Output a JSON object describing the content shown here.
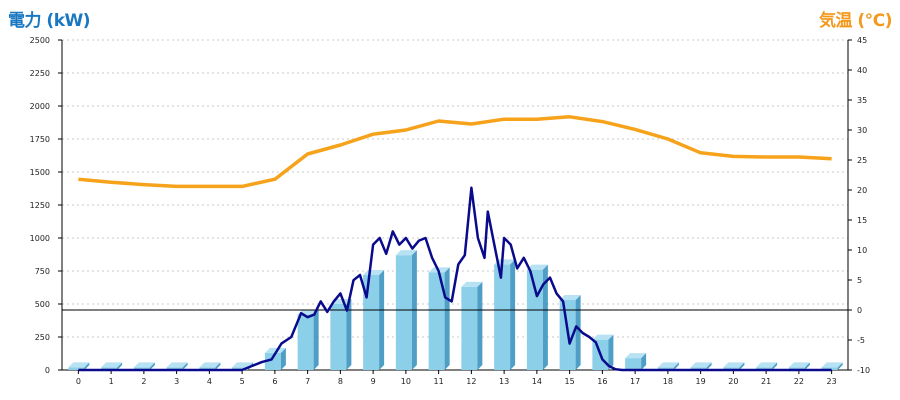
{
  "colors": {
    "power_line": "#0a0a8c",
    "temperature_line": "#f7a21b",
    "bar_front": "#8ccfe9",
    "bar_side": "#4f9ec5",
    "bar_top": "#b7e2f3",
    "grid": "#c9c9c9",
    "left_title": "#1a78c2",
    "right_title": "#f39a1e"
  },
  "chart_data": {
    "type": "bar+line",
    "left_axis_title": "電力 (kW)",
    "right_axis_title": "気温 (℃)",
    "left_ylim": [
      0,
      2500
    ],
    "left_yticks": [
      0,
      250,
      500,
      750,
      1000,
      1250,
      1500,
      1750,
      2000,
      2250,
      2500
    ],
    "right_ylim": [
      -10,
      45
    ],
    "right_yticks": [
      -10,
      -5,
      0,
      5,
      10,
      15,
      20,
      25,
      30,
      35,
      40,
      45
    ],
    "x_categories": [
      "0",
      "1",
      "2",
      "3",
      "4",
      "5",
      "6",
      "7",
      "8",
      "9",
      "10",
      "11",
      "12",
      "13",
      "14",
      "15",
      "16",
      "17",
      "18",
      "19",
      "20",
      "21",
      "22",
      "23"
    ],
    "grid": "horizontal dashed",
    "zero_reference_line_right_axis": 0,
    "series": [
      {
        "chart": "bar",
        "axis": "left",
        "values": [
          20,
          20,
          20,
          20,
          20,
          20,
          130,
          420,
          500,
          720,
          870,
          740,
          630,
          800,
          760,
          530,
          230,
          90,
          20,
          20,
          20,
          20,
          20,
          20
        ]
      },
      {
        "chart": "line",
        "axis": "right",
        "x": [
          0,
          1,
          2,
          3,
          4,
          5,
          6,
          7,
          8,
          9,
          10,
          11,
          12,
          13,
          14,
          15,
          16,
          17,
          18,
          19,
          20,
          21,
          22,
          23
        ],
        "values": [
          21.8,
          21.3,
          20.9,
          20.6,
          20.6,
          20.6,
          21.8,
          26.0,
          27.5,
          29.3,
          30.0,
          31.5,
          31.0,
          31.8,
          31.8,
          32.2,
          31.4,
          30.1,
          28.5,
          26.2,
          25.6,
          25.5,
          25.5,
          25.2
        ]
      },
      {
        "chart": "line",
        "axis": "left",
        "x": [
          0,
          1,
          2,
          3,
          4,
          5,
          5.3,
          5.6,
          5.9,
          6.2,
          6.5,
          6.8,
          7.0,
          7.2,
          7.4,
          7.6,
          7.8,
          8.0,
          8.2,
          8.4,
          8.6,
          8.8,
          9.0,
          9.2,
          9.4,
          9.6,
          9.8,
          10.0,
          10.2,
          10.4,
          10.6,
          10.8,
          11.0,
          11.2,
          11.4,
          11.6,
          11.8,
          12.0,
          12.2,
          12.4,
          12.5,
          12.7,
          12.9,
          13.0,
          13.2,
          13.4,
          13.6,
          13.8,
          14.0,
          14.2,
          14.4,
          14.6,
          14.8,
          15.0,
          15.2,
          15.4,
          15.6,
          15.8,
          16.0,
          16.2,
          16.4,
          16.6,
          16.8,
          17.0,
          17.3,
          17.6,
          18,
          19,
          20,
          21,
          22,
          23
        ],
        "values": [
          0,
          0,
          0,
          0,
          0,
          0,
          30,
          60,
          80,
          200,
          250,
          430,
          400,
          420,
          520,
          440,
          520,
          580,
          450,
          680,
          720,
          550,
          950,
          1000,
          880,
          1050,
          950,
          1000,
          920,
          980,
          1000,
          850,
          750,
          550,
          520,
          800,
          870,
          1380,
          1000,
          850,
          1200,
          950,
          700,
          1000,
          950,
          770,
          850,
          750,
          560,
          650,
          700,
          580,
          520,
          200,
          330,
          280,
          250,
          210,
          80,
          30,
          5,
          0,
          0,
          0,
          0,
          0,
          0,
          0,
          0,
          0,
          0,
          0
        ]
      }
    ]
  }
}
